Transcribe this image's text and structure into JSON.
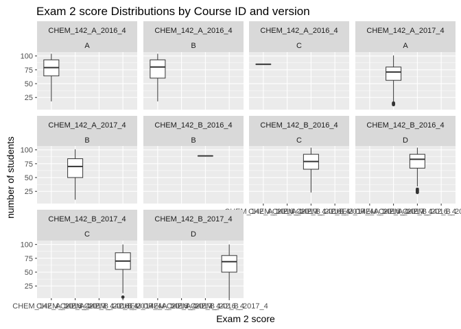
{
  "chart_data": {
    "type": "boxplot",
    "title": "Exam 2 score Distributions by Course ID and version",
    "xlabel": "Exam 2 score",
    "ylabel": "number of students",
    "y_ticks": [
      25,
      50,
      75,
      100
    ],
    "ylim": [
      3,
      107
    ],
    "x_categories": [
      "CHEM_142_A_2016_4",
      "CHEM_142_A_2017_4",
      "CHEM_142_B_2016_4",
      "CHEM_142_B_2017_4"
    ],
    "colors": {
      "panel_bg": "#ebebeb",
      "grid": "#ffffff",
      "strip_bg": "#d9d9d9",
      "box_fill": "#ffffff",
      "box_line": "#333333",
      "tick_label": "#4d4d4d"
    },
    "panels": [
      {
        "course": "CHEM_142_A_2016_4",
        "version": "A",
        "x_index": 0,
        "min": 18,
        "q1": 64,
        "median": 79,
        "q3": 93,
        "max": 104,
        "outliers": []
      },
      {
        "course": "CHEM_142_A_2016_4",
        "version": "B",
        "x_index": 0,
        "min": 18,
        "q1": 60,
        "median": 80,
        "q3": 93,
        "max": 104,
        "outliers": []
      },
      {
        "course": "CHEM_142_A_2016_4",
        "version": "C",
        "x_index": 0,
        "min": 85,
        "q1": 85,
        "median": 85,
        "q3": 85,
        "max": 85,
        "outliers": []
      },
      {
        "course": "CHEM_142_A_2017_4",
        "version": "A",
        "x_index": 1,
        "min": 17,
        "q1": 56,
        "median": 71,
        "q3": 80,
        "max": 101,
        "outliers": [
          12,
          14,
          15
        ]
      },
      {
        "course": "CHEM_142_A_2017_4",
        "version": "B",
        "x_index": 1,
        "min": 10,
        "q1": 50,
        "median": 70,
        "q3": 84,
        "max": 101,
        "outliers": []
      },
      {
        "course": "CHEM_142_B_2016_4",
        "version": "B",
        "x_index": 2,
        "min": 89,
        "q1": 89,
        "median": 89,
        "q3": 89,
        "max": 89,
        "outliers": []
      },
      {
        "course": "CHEM_142_B_2016_4",
        "version": "C",
        "x_index": 2,
        "min": 23,
        "q1": 65,
        "median": 79,
        "q3": 92,
        "max": 104,
        "outliers": []
      },
      {
        "course": "CHEM_142_B_2016_4",
        "version": "D",
        "x_index": 2,
        "min": 34,
        "q1": 67,
        "median": 83,
        "q3": 92,
        "max": 104,
        "outliers": [
          23,
          25,
          27,
          29
        ]
      },
      {
        "course": "CHEM_142_B_2017_4",
        "version": "C",
        "x_index": 3,
        "min": 12,
        "q1": 55,
        "median": 70,
        "q3": 85,
        "max": 100,
        "outliers": [
          5
        ]
      },
      {
        "course": "CHEM_142_B_2017_4",
        "version": "D",
        "x_index": 3,
        "min": 3,
        "q1": 50,
        "median": 69,
        "q3": 80,
        "max": 100,
        "outliers": []
      }
    ]
  }
}
